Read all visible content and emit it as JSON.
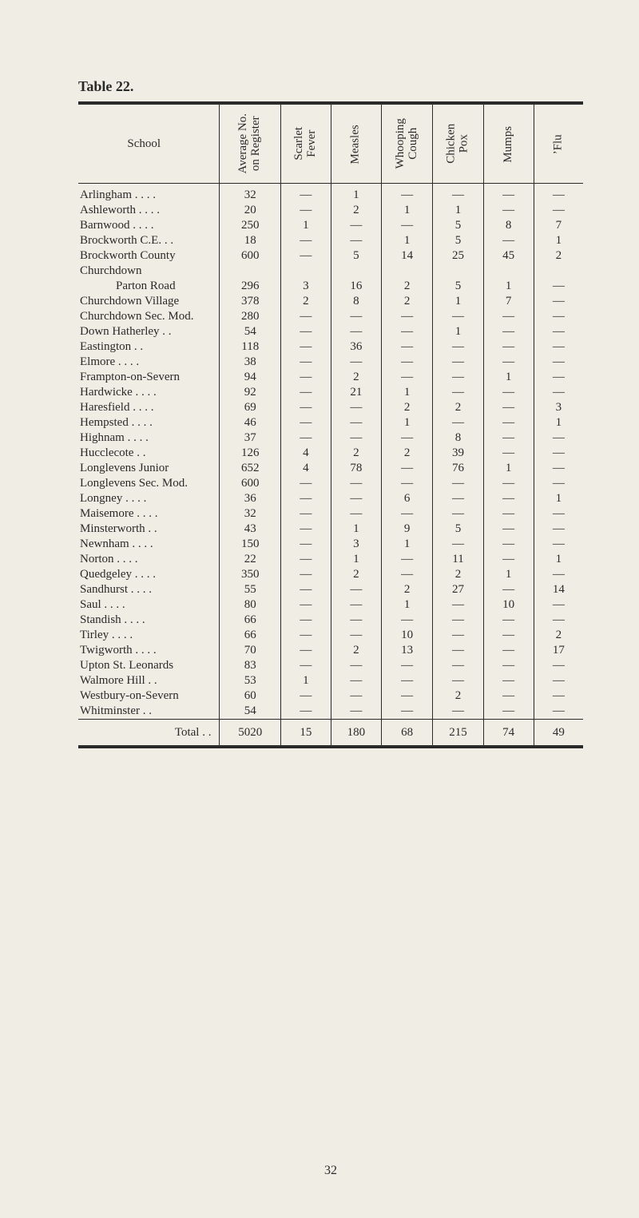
{
  "title": "Table 22.",
  "page_number": "32",
  "em_dash": "—",
  "table": {
    "columns": {
      "school": "School",
      "avg_no": "Average No.<br>on Register",
      "scarlet": "Scarlet<br>Fever",
      "measles": "Measles",
      "whooping": "Whooping<br>Cough",
      "chicken": "Chicken<br>Pox",
      "mumps": "Mumps",
      "flu": "’Flu"
    },
    "rows": [
      {
        "school": "Arlingham   . .          . .",
        "v": [
          "32",
          "—",
          "1",
          "—",
          "—",
          "—",
          "—"
        ]
      },
      {
        "school": "Ashleworth . .          . .",
        "v": [
          "20",
          "—",
          "2",
          "1",
          "1",
          "—",
          "—"
        ]
      },
      {
        "school": "Barnwood   . .          . .",
        "v": [
          "250",
          "1",
          "—",
          "—",
          "5",
          "8",
          "7"
        ]
      },
      {
        "school": "Brockworth C.E.    . .",
        "v": [
          "18",
          "—",
          "—",
          "1",
          "5",
          "—",
          "1"
        ]
      },
      {
        "school": "Brockworth County",
        "v": [
          "600",
          "—",
          "5",
          "14",
          "25",
          "45",
          "2"
        ]
      },
      {
        "school": "Churchdown",
        "v": [
          "",
          "",
          "",
          "",
          "",
          "",
          ""
        ]
      },
      {
        "school": "            Parton Road",
        "v": [
          "296",
          "3",
          "16",
          "2",
          "5",
          "1",
          "—"
        ]
      },
      {
        "school": "Churchdown Village",
        "v": [
          "378",
          "2",
          "8",
          "2",
          "1",
          "7",
          "—"
        ]
      },
      {
        "school": "Churchdown Sec. Mod.",
        "v": [
          "280",
          "—",
          "—",
          "—",
          "—",
          "—",
          "—"
        ]
      },
      {
        "school": "Down Hatherley     . .",
        "v": [
          "54",
          "—",
          "—",
          "—",
          "1",
          "—",
          "—"
        ]
      },
      {
        "school": "Eastington               . .",
        "v": [
          "118",
          "—",
          "36",
          "—",
          "—",
          "—",
          "—"
        ]
      },
      {
        "school": "Elmore        . .          . .",
        "v": [
          "38",
          "—",
          "—",
          "—",
          "—",
          "—",
          "—"
        ]
      },
      {
        "school": "Frampton-on-Severn",
        "v": [
          "94",
          "—",
          "2",
          "—",
          "—",
          "1",
          "—"
        ]
      },
      {
        "school": "Hardwicke  . .          . .",
        "v": [
          "92",
          "—",
          "21",
          "1",
          "—",
          "—",
          "—"
        ]
      },
      {
        "school": "Haresfield   . .          . .",
        "v": [
          "69",
          "—",
          "—",
          "2",
          "2",
          "—",
          "3"
        ]
      },
      {
        "school": "Hempsted   . .          . .",
        "v": [
          "46",
          "—",
          "—",
          "1",
          "—",
          "—",
          "1"
        ]
      },
      {
        "school": "Highnam    . .          . .",
        "v": [
          "37",
          "—",
          "—",
          "—",
          "8",
          "—",
          "—"
        ]
      },
      {
        "school": "Hucclecote               . .",
        "v": [
          "126",
          "4",
          "2",
          "2",
          "39",
          "—",
          "—"
        ]
      },
      {
        "school": "Longlevens Junior",
        "v": [
          "652",
          "4",
          "78",
          "—",
          "76",
          "1",
          "—"
        ]
      },
      {
        "school": "Longlevens Sec. Mod.",
        "v": [
          "600",
          "—",
          "—",
          "—",
          "—",
          "—",
          "—"
        ]
      },
      {
        "school": "Longney       . .          . .",
        "v": [
          "36",
          "—",
          "—",
          "6",
          "—",
          "—",
          "1"
        ]
      },
      {
        "school": "Maisemore   . .          . .",
        "v": [
          "32",
          "—",
          "—",
          "—",
          "—",
          "—",
          "—"
        ]
      },
      {
        "school": "Minsterworth          . .",
        "v": [
          "43",
          "—",
          "1",
          "9",
          "5",
          "—",
          "—"
        ]
      },
      {
        "school": "Newnham    . .          . .",
        "v": [
          "150",
          "—",
          "3",
          "1",
          "—",
          "—",
          "—"
        ]
      },
      {
        "school": "Norton         . .          . .",
        "v": [
          "22",
          "—",
          "1",
          "—",
          "11",
          "—",
          "1"
        ]
      },
      {
        "school": "Quedgeley    . .          . .",
        "v": [
          "350",
          "—",
          "2",
          "—",
          "2",
          "1",
          "—"
        ]
      },
      {
        "school": "Sandhurst    . .          . .",
        "v": [
          "55",
          "—",
          "—",
          "2",
          "27",
          "—",
          "14"
        ]
      },
      {
        "school": "Saul             . .          . .",
        "v": [
          "80",
          "—",
          "—",
          "1",
          "—",
          "10",
          "—"
        ]
      },
      {
        "school": "Standish       . .          . .",
        "v": [
          "66",
          "—",
          "—",
          "—",
          "—",
          "—",
          "—"
        ]
      },
      {
        "school": "Tirley           . .          . .",
        "v": [
          "66",
          "—",
          "—",
          "10",
          "—",
          "—",
          "2"
        ]
      },
      {
        "school": "Twigworth  . .          . .",
        "v": [
          "70",
          "—",
          "2",
          "13",
          "—",
          "—",
          "17"
        ]
      },
      {
        "school": "Upton St. Leonards",
        "v": [
          "83",
          "—",
          "—",
          "—",
          "—",
          "—",
          "—"
        ]
      },
      {
        "school": "Walmore Hill          . .",
        "v": [
          "53",
          "1",
          "—",
          "—",
          "—",
          "—",
          "—"
        ]
      },
      {
        "school": "Westbury-on-Severn",
        "v": [
          "60",
          "—",
          "—",
          "—",
          "2",
          "—",
          "—"
        ]
      },
      {
        "school": "Whitminster          . .",
        "v": [
          "54",
          "—",
          "—",
          "—",
          "—",
          "—",
          "—"
        ]
      }
    ],
    "total": {
      "label": "Total    . .",
      "v": [
        "5020",
        "15",
        "180",
        "68",
        "215",
        "74",
        "49"
      ]
    }
  }
}
